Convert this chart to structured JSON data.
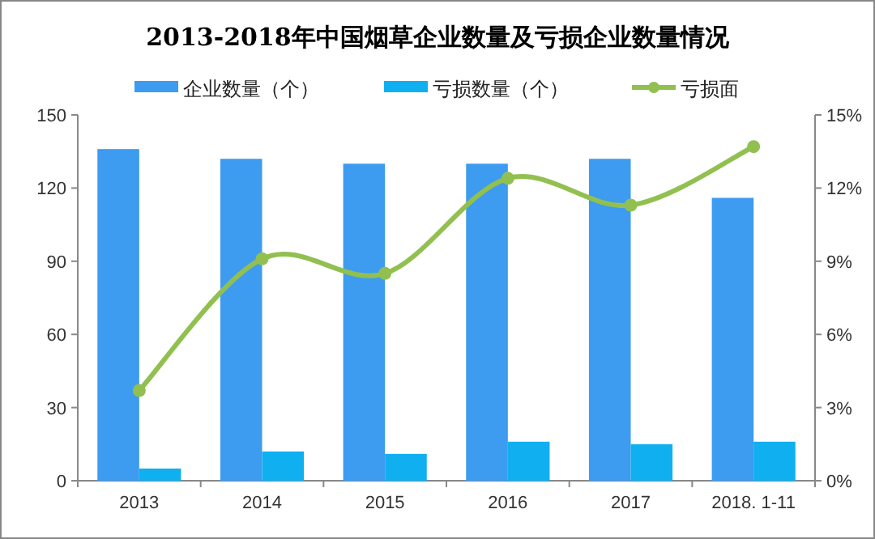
{
  "chart_data": {
    "type": "bar",
    "title": "2013-2018年中国烟草企业数量及亏损企业数量情况",
    "categories": [
      "2013",
      "2014",
      "2015",
      "2016",
      "2017",
      "2018. 1-11"
    ],
    "series": [
      {
        "name": "企业数量（个）",
        "color": "#3d9bf0",
        "values": [
          136,
          132,
          130,
          130,
          132,
          116
        ]
      },
      {
        "name": "亏损数量（个）",
        "color": "#10aff0",
        "values": [
          5,
          12,
          11,
          16,
          15,
          16
        ]
      },
      {
        "name": "亏损面",
        "type": "line",
        "axis": "y2",
        "color": "#92c050",
        "marker": "circle",
        "values": [
          3.7,
          9.1,
          8.5,
          12.4,
          11.3,
          13.7
        ]
      }
    ],
    "ylim": [
      0,
      150
    ],
    "yticks": [
      0,
      30,
      60,
      90,
      120,
      150
    ],
    "y2lim": [
      0,
      15
    ],
    "y2ticks": [
      {
        "value": 0,
        "label": "0%"
      },
      {
        "value": 3,
        "label": "3%"
      },
      {
        "value": 6,
        "label": "6%"
      },
      {
        "value": 9,
        "label": "9%"
      },
      {
        "value": 12,
        "label": "12%"
      },
      {
        "value": 15,
        "label": "15%"
      }
    ],
    "grid": false,
    "legend": "top"
  }
}
